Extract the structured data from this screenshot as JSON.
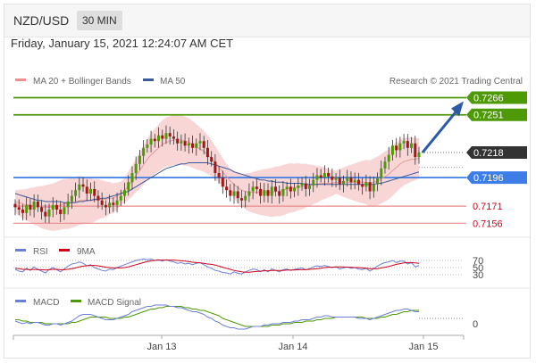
{
  "header": {
    "pair": "NZD/USD",
    "timeframe": "30 MIN"
  },
  "datetime": "Friday, January 15, 2021 12:24:07 AM CET",
  "copyright": "Research © 2021 Trading Central",
  "colors": {
    "resistance": "#4e9a06",
    "support": "#e88a8a",
    "pivot": "#3d7ee6",
    "current": "#333333",
    "bollinger": "#f6c8c8",
    "ma20": "#e99a9a",
    "ma50": "#3a5a9c",
    "arrow": "#2d5aa6",
    "rsi": "#6b7fd7",
    "rsi_ma": "#d0021b",
    "macd": "#6b7fd7",
    "macd_signal": "#4e9a06"
  },
  "chart_data": [
    {
      "type": "candlestick",
      "legend": [
        {
          "name": "MA 20 + Bollinger Bands"
        },
        {
          "name": "MA 50"
        }
      ],
      "x_ticks": [
        "Jan 13",
        "Jan 14",
        "Jan 15"
      ],
      "ylim": [
        0.715,
        0.7275
      ],
      "levels": [
        {
          "label": "0.7266",
          "value": 0.7266,
          "kind": "resistance"
        },
        {
          "label": "0.7251",
          "value": 0.7251,
          "kind": "resistance"
        },
        {
          "label": "0.7218",
          "value": 0.7218,
          "kind": "current"
        },
        {
          "label": "0.7196",
          "value": 0.7196,
          "kind": "pivot"
        },
        {
          "label": "0.7171",
          "value": 0.7171,
          "kind": "support"
        },
        {
          "label": "0.7156",
          "value": 0.7156,
          "kind": "support"
        }
      ],
      "close": [
        0.717,
        0.7168,
        0.7165,
        0.7172,
        0.7168,
        0.7175,
        0.717,
        0.7166,
        0.7162,
        0.7168,
        0.7172,
        0.7168,
        0.7164,
        0.717,
        0.7175,
        0.718,
        0.7185,
        0.719,
        0.7188,
        0.7182,
        0.7186,
        0.718,
        0.7176,
        0.7172,
        0.717,
        0.7174,
        0.7172,
        0.7176,
        0.718,
        0.7185,
        0.7192,
        0.72,
        0.7208,
        0.7215,
        0.7222,
        0.7225,
        0.723,
        0.7228,
        0.7233,
        0.723,
        0.7235,
        0.7232,
        0.723,
        0.7226,
        0.7228,
        0.7224,
        0.7226,
        0.7222,
        0.7226,
        0.7228,
        0.7222,
        0.7214,
        0.721,
        0.72,
        0.7196,
        0.7188,
        0.7185,
        0.718,
        0.7184,
        0.7178,
        0.7176,
        0.718,
        0.7184,
        0.7188,
        0.7186,
        0.718,
        0.7185,
        0.718,
        0.7188,
        0.7184,
        0.718,
        0.7186,
        0.7188,
        0.7184,
        0.7187,
        0.7189,
        0.7191,
        0.7186,
        0.7189,
        0.7194,
        0.7198,
        0.7196,
        0.72,
        0.7197,
        0.7194,
        0.7196,
        0.719,
        0.7193,
        0.7196,
        0.7192,
        0.7194,
        0.719,
        0.7188,
        0.7192,
        0.7184,
        0.719,
        0.7196,
        0.7204,
        0.721,
        0.7216,
        0.7224,
        0.722,
        0.7226,
        0.7228,
        0.7222,
        0.7226,
        0.7214,
        0.7218
      ],
      "ma20": [
        0.7175,
        0.7174,
        0.7173,
        0.7172,
        0.7172,
        0.7171,
        0.7171,
        0.717,
        0.717,
        0.717,
        0.717,
        0.7171,
        0.7172,
        0.7173,
        0.7173,
        0.7174,
        0.7175,
        0.7176,
        0.7176,
        0.7176,
        0.7176,
        0.7176,
        0.7177,
        0.7177,
        0.7177,
        0.7178,
        0.7178,
        0.718,
        0.7182,
        0.7185,
        0.7189,
        0.7193,
        0.7198,
        0.7202,
        0.7207,
        0.7212,
        0.7216,
        0.7219,
        0.7222,
        0.7225,
        0.7227,
        0.7228,
        0.7229,
        0.7229,
        0.7229,
        0.7228,
        0.7227,
        0.7225,
        0.7223,
        0.7221,
        0.7219,
        0.7216,
        0.7213,
        0.7209,
        0.7205,
        0.7201,
        0.7197,
        0.7193,
        0.719,
        0.7187,
        0.7185,
        0.7184,
        0.7183,
        0.7183,
        0.7183,
        0.7183,
        0.7183,
        0.7183,
        0.7183,
        0.7184,
        0.7184,
        0.7185,
        0.7186,
        0.7187,
        0.7187,
        0.7188,
        0.7188,
        0.7189,
        0.7189,
        0.719,
        0.719,
        0.7191,
        0.7191,
        0.7191,
        0.7191,
        0.7192,
        0.7192,
        0.7192,
        0.7192,
        0.7192,
        0.7192,
        0.7192,
        0.7192,
        0.7192,
        0.7191,
        0.7192,
        0.7193,
        0.7195,
        0.7197,
        0.7199,
        0.7202,
        0.7205,
        0.7208,
        0.721,
        0.7211,
        0.7212,
        0.7212,
        0.7213
      ],
      "ma50": [
        0.7182,
        0.7181,
        0.718,
        0.7179,
        0.7178,
        0.7177,
        0.7176,
        0.7176,
        0.7175,
        0.7175,
        0.7175,
        0.7175,
        0.7175,
        0.7174,
        0.7174,
        0.7174,
        0.7174,
        0.7175,
        0.7175,
        0.7176,
        0.7176,
        0.7177,
        0.7177,
        0.7178,
        0.7178,
        0.7179,
        0.718,
        0.7181,
        0.7182,
        0.7183,
        0.7184,
        0.7186,
        0.7188,
        0.719,
        0.7192,
        0.7194,
        0.7196,
        0.7198,
        0.72,
        0.7202,
        0.7204,
        0.7205,
        0.7206,
        0.7207,
        0.7208,
        0.7208,
        0.7209,
        0.7209,
        0.7209,
        0.7209,
        0.7209,
        0.7209,
        0.7208,
        0.7207,
        0.7206,
        0.7205,
        0.7204,
        0.7203,
        0.7201,
        0.72,
        0.7199,
        0.7198,
        0.7197,
        0.7196,
        0.7195,
        0.7194,
        0.7194,
        0.7193,
        0.7193,
        0.7192,
        0.7192,
        0.7192,
        0.7191,
        0.7191,
        0.7191,
        0.7191,
        0.7191,
        0.719,
        0.719,
        0.719,
        0.719,
        0.719,
        0.719,
        0.719,
        0.719,
        0.719,
        0.719,
        0.719,
        0.719,
        0.719,
        0.719,
        0.719,
        0.719,
        0.719,
        0.719,
        0.719,
        0.7191,
        0.7191,
        0.7192,
        0.7193,
        0.7194,
        0.7195,
        0.7196,
        0.7197,
        0.7198,
        0.7199,
        0.72,
        0.7201
      ],
      "forecast": [
        0.7218,
        0.7266
      ]
    },
    {
      "type": "line",
      "legend": [
        {
          "name": "RSI"
        },
        {
          "name": "9MA"
        }
      ],
      "y_ticks": [
        "70",
        "50",
        "30"
      ],
      "ylim": [
        0,
        100
      ],
      "rsi": [
        45,
        40,
        38,
        48,
        42,
        52,
        45,
        40,
        35,
        44,
        50,
        44,
        38,
        46,
        54,
        60,
        62,
        66,
        62,
        55,
        58,
        50,
        46,
        42,
        40,
        46,
        44,
        50,
        54,
        58,
        62,
        66,
        70,
        72,
        74,
        72,
        74,
        70,
        72,
        68,
        72,
        68,
        66,
        62,
        64,
        60,
        62,
        58,
        62,
        64,
        58,
        52,
        48,
        42,
        40,
        36,
        35,
        32,
        38,
        34,
        32,
        38,
        42,
        46,
        44,
        38,
        44,
        38,
        46,
        42,
        38,
        44,
        46,
        42,
        45,
        47,
        49,
        44,
        47,
        52,
        55,
        53,
        56,
        53,
        50,
        52,
        46,
        49,
        52,
        48,
        50,
        46,
        44,
        48,
        40,
        47,
        54,
        60,
        64,
        66,
        70,
        64,
        68,
        68,
        60,
        64,
        52,
        56
      ],
      "ma9": [
        48,
        47,
        45,
        45,
        44,
        45,
        44,
        44,
        43,
        44,
        45,
        45,
        44,
        44,
        45,
        47,
        49,
        52,
        54,
        55,
        56,
        56,
        55,
        53,
        51,
        50,
        49,
        49,
        49,
        50,
        52,
        55,
        58,
        61,
        64,
        67,
        69,
        70,
        71,
        71,
        71,
        71,
        71,
        70,
        69,
        68,
        67,
        65,
        64,
        63,
        62,
        60,
        59,
        57,
        54,
        51,
        48,
        45,
        42,
        40,
        38,
        37,
        37,
        38,
        39,
        40,
        41,
        41,
        42,
        42,
        42,
        42,
        43,
        43,
        43,
        44,
        44,
        44,
        45,
        46,
        47,
        48,
        50,
        51,
        51,
        52,
        52,
        52,
        51,
        51,
        50,
        50,
        49,
        48,
        47,
        47,
        47,
        49,
        51,
        53,
        56,
        59,
        61,
        63,
        64,
        64,
        63,
        62
      ]
    },
    {
      "type": "line",
      "legend": [
        {
          "name": "MACD"
        },
        {
          "name": "MACD Signal"
        }
      ],
      "y_ticks": [
        "0"
      ],
      "ylim": [
        -0.0012,
        0.0012
      ],
      "macd": [
        -0.0002,
        -0.0003,
        -0.0004,
        -0.0003,
        -0.0004,
        -0.0003,
        -0.0003,
        -0.0004,
        -0.0005,
        -0.0005,
        -0.0004,
        -0.0004,
        -0.0005,
        -0.0004,
        -0.0003,
        -0.0002,
        0.0,
        0.0002,
        0.0003,
        0.0003,
        0.0003,
        0.0002,
        0.0001,
        0.0,
        -0.0001,
        -0.0001,
        -0.0001,
        0.0,
        0.0001,
        0.0002,
        0.0003,
        0.0005,
        0.0006,
        0.0007,
        0.0008,
        0.0009,
        0.0009,
        0.001,
        0.001,
        0.001,
        0.001,
        0.0009,
        0.0009,
        0.0008,
        0.0008,
        0.0007,
        0.0006,
        0.0005,
        0.0005,
        0.0004,
        0.0003,
        0.0001,
        0.0,
        -0.0002,
        -0.0003,
        -0.0005,
        -0.0006,
        -0.0007,
        -0.0007,
        -0.0008,
        -0.0008,
        -0.0008,
        -0.0007,
        -0.0006,
        -0.0006,
        -0.0006,
        -0.0005,
        -0.0005,
        -0.0004,
        -0.0004,
        -0.0004,
        -0.0003,
        -0.0003,
        -0.0003,
        -0.0002,
        -0.0002,
        -0.0001,
        -0.0001,
        -0.0001,
        0.0,
        0.0001,
        0.0001,
        0.0002,
        0.0002,
        0.0001,
        0.0001,
        0.0001,
        0.0001,
        0.0001,
        0.0001,
        0.0001,
        0.0,
        0.0,
        0.0,
        -0.0001,
        0.0,
        0.0001,
        0.0002,
        0.0003,
        0.0004,
        0.0005,
        0.0006,
        0.0006,
        0.0007,
        0.0007,
        0.0006,
        0.0005,
        0.0005
      ],
      "signal": [
        -0.0001,
        -0.0001,
        -0.0002,
        -0.0002,
        -0.0003,
        -0.0003,
        -0.0003,
        -0.0003,
        -0.0004,
        -0.0004,
        -0.0004,
        -0.0004,
        -0.0004,
        -0.0004,
        -0.0004,
        -0.0003,
        -0.0003,
        -0.0002,
        -0.0001,
        0.0,
        0.0001,
        0.0001,
        0.0001,
        0.0001,
        0.0001,
        0.0,
        0.0,
        0.0,
        0.0,
        0.0001,
        0.0001,
        0.0002,
        0.0003,
        0.0004,
        0.0005,
        0.0006,
        0.0007,
        0.0007,
        0.0008,
        0.0008,
        0.0009,
        0.0009,
        0.0009,
        0.0009,
        0.0009,
        0.0008,
        0.0008,
        0.0007,
        0.0007,
        0.0006,
        0.0006,
        0.0005,
        0.0004,
        0.0003,
        0.0002,
        0.0,
        -0.0001,
        -0.0002,
        -0.0003,
        -0.0004,
        -0.0005,
        -0.0006,
        -0.0006,
        -0.0006,
        -0.0006,
        -0.0006,
        -0.0006,
        -0.0006,
        -0.0005,
        -0.0005,
        -0.0005,
        -0.0004,
        -0.0004,
        -0.0004,
        -0.0003,
        -0.0003,
        -0.0003,
        -0.0002,
        -0.0002,
        -0.0002,
        -0.0001,
        -0.0001,
        0.0,
        0.0,
        0.0,
        0.0001,
        0.0001,
        0.0001,
        0.0001,
        0.0001,
        0.0001,
        0.0001,
        0.0001,
        0.0,
        0.0,
        0.0,
        0.0,
        0.0001,
        0.0001,
        0.0002,
        0.0003,
        0.0003,
        0.0004,
        0.0005,
        0.0005,
        0.0006,
        0.0006,
        0.0006
      ]
    }
  ]
}
